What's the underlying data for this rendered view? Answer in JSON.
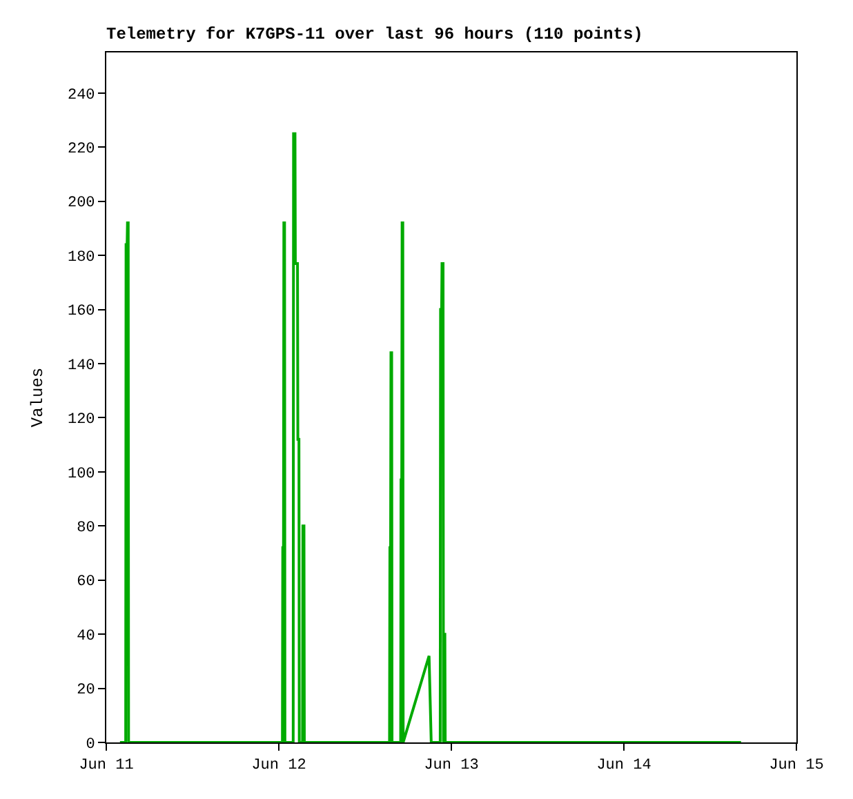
{
  "chart_data": {
    "type": "line",
    "title": "Telemetry for K7GPS-11 over last 96 hours (110 points)",
    "ylabel": "Values",
    "x": [
      "--06-11T01:54",
      "--06-11T02:42",
      "--06-11T02:45",
      "--06-11T02:54",
      "--06-11T02:57",
      "--06-11T03:03",
      "--06-11T03:06",
      "--06-12T00:30",
      "--06-12T00:33",
      "--06-12T00:39",
      "--06-12T00:42",
      "--06-12T00:48",
      "--06-12T00:51",
      "--06-12T02:00",
      "--06-12T02:03",
      "--06-12T02:15",
      "--06-12T02:18",
      "--06-12T02:36",
      "--06-12T02:39",
      "--06-12T02:48",
      "--06-12T02:51",
      "--06-12T03:18",
      "--06-12T03:21",
      "--06-12T03:30",
      "--06-12T03:33",
      "--06-12T15:24",
      "--06-12T15:27",
      "--06-12T15:33",
      "--06-12T15:36",
      "--06-12T15:42",
      "--06-12T15:45",
      "--06-12T16:57",
      "--06-12T17:00",
      "--06-12T17:06",
      "--06-12T17:09",
      "--06-12T17:15",
      "--06-12T17:18",
      "--06-12T20:54",
      "--06-12T21:03",
      "--06-12T21:12",
      "--06-12T22:27",
      "--06-12T22:30",
      "--06-12T22:39",
      "--06-12T22:42",
      "--06-12T22:51",
      "--06-12T22:54",
      "--06-12T22:57",
      "--06-12T23:06",
      "--06-12T23:09",
      "--06-14T16:18"
    ],
    "series": [
      {
        "color": "#00aa00",
        "values": [
          0,
          0,
          184,
          184,
          192,
          192,
          0,
          0,
          72,
          72,
          192,
          192,
          0,
          0,
          225,
          225,
          177,
          177,
          112,
          112,
          0,
          0,
          80,
          80,
          0,
          0,
          72,
          72,
          144,
          144,
          0,
          0,
          97,
          97,
          192,
          192,
          0,
          32,
          16,
          0,
          0,
          160,
          160,
          177,
          177,
          0,
          40,
          40,
          0,
          0
        ]
      }
    ],
    "xlim": [
      "--06-11",
      "--06-15"
    ],
    "xticks": [
      {
        "value": "--06-11",
        "label": "Jun 11"
      },
      {
        "value": "--06-12",
        "label": "Jun 12"
      },
      {
        "value": "--06-13",
        "label": "Jun 13"
      },
      {
        "value": "--06-14",
        "label": "Jun 14"
      },
      {
        "value": "--06-15",
        "label": "Jun 15"
      }
    ],
    "ylim": [
      0,
      255
    ],
    "yticks": [
      0,
      20,
      40,
      60,
      80,
      100,
      120,
      140,
      160,
      180,
      200,
      220,
      240
    ],
    "marker": "none",
    "line_style": "solid"
  }
}
